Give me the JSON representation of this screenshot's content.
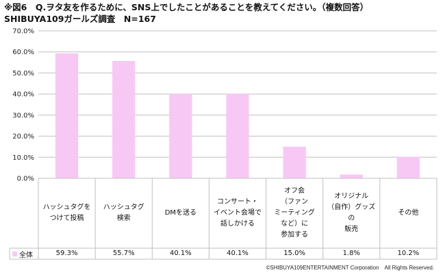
{
  "title_line1": "※図6　Q.ヲタ友を作るために、SNS上でしたことがあることを教えてください。（複数回答）",
  "title_line2": "SHIBUYA109ガールズ調査　N=167",
  "copyright": "©SHIBUYA109ENTERTAINMENT Corporation　All Rights Reserved.",
  "colors": {
    "bar": "#f8c8f5",
    "grid": "#bfbfbf"
  },
  "chart_data": {
    "type": "bar",
    "categories": [
      "ハッシュタグを\nつけて投稿",
      "ハッシュタグ\n検索",
      "DMを送る",
      "コンサート・\nイベント会場で\n話しかける",
      "オフ会\n（ファン\nミーティング\nなど）に\n参加する",
      "オリジナル\n（自作）グッズ\nの\n販売",
      "その他"
    ],
    "series": [
      {
        "name": "全体",
        "values": [
          59.3,
          55.7,
          40.1,
          40.1,
          15.0,
          1.8,
          10.2
        ]
      }
    ],
    "value_labels": [
      "59.3%",
      "55.7%",
      "40.1%",
      "40.1%",
      "15.0%",
      "1.8%",
      "10.2%"
    ],
    "yticks": [
      0,
      10,
      20,
      30,
      40,
      50,
      60,
      70
    ],
    "ytick_labels": [
      "0.0%",
      "10.0%",
      "20.0%",
      "30.0%",
      "40.0%",
      "50.0%",
      "60.0%",
      "70.0%"
    ],
    "ylim": [
      0,
      70
    ],
    "grid": true,
    "legend": "data-table-left"
  }
}
